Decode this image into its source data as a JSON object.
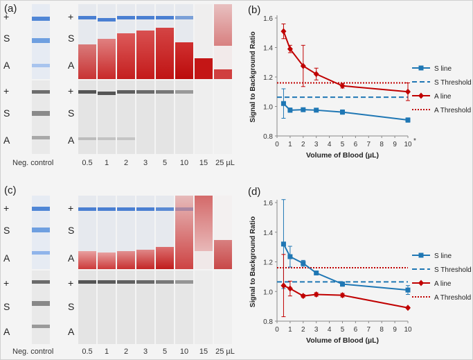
{
  "panels": {
    "a": "(a)",
    "b": "(b)",
    "c": "(c)",
    "d": "(d)"
  },
  "strip_row_labels": [
    "+",
    "S",
    "A"
  ],
  "strip_x_labels": [
    "0.5",
    "1",
    "2",
    "3",
    "5",
    "10",
    "15",
    "25 µL"
  ],
  "neg_control_label": "Neg. control",
  "chart_data": [
    {
      "type": "line",
      "panel": "(b)",
      "title": "",
      "xlabel": "Volume of Blood (µL)",
      "ylabel": "Signal to Background Ratio",
      "ylim": [
        0.8,
        1.6
      ],
      "xlim": [
        0,
        10
      ],
      "xticks": [
        "0",
        "1",
        "2",
        "3",
        "4",
        "5",
        "6",
        "7",
        "8",
        "9",
        "10"
      ],
      "yticks": [
        "0.8",
        "1.0",
        "1.2",
        "1.4",
        "1.6"
      ],
      "x_annotation": "*",
      "legend_position": "right",
      "series": [
        {
          "name": "S line",
          "color": "#1f77b4",
          "marker": "square",
          "x": [
            0.5,
            1,
            2,
            3,
            5,
            10
          ],
          "y": [
            1.02,
            0.975,
            0.978,
            0.975,
            0.962,
            0.908
          ],
          "err": [
            0.1,
            0.015,
            0.01,
            0.01,
            0.015,
            0.015
          ]
        },
        {
          "name": "A line",
          "color": "#c00000",
          "marker": "diamond",
          "x": [
            0.5,
            1,
            2,
            3,
            5,
            10
          ],
          "y": [
            1.51,
            1.39,
            1.275,
            1.22,
            1.14,
            1.1
          ],
          "err": [
            0.05,
            0.025,
            0.14,
            0.04,
            0.015,
            0.06
          ]
        }
      ],
      "thresholds": [
        {
          "name": "S Threshold",
          "color": "#1f77b4",
          "style": "dashed",
          "y": 1.063
        },
        {
          "name": "A Threshold",
          "color": "#c00000",
          "style": "dotted",
          "y": 1.16
        }
      ]
    },
    {
      "type": "line",
      "panel": "(d)",
      "title": "",
      "xlabel": "Volume of Blood (µL)",
      "ylabel": "Signal to Background Ratio",
      "ylim": [
        0.8,
        1.6
      ],
      "xlim": [
        0,
        10
      ],
      "xticks": [
        "0",
        "1",
        "2",
        "3",
        "4",
        "5",
        "6",
        "7",
        "8",
        "9",
        "10"
      ],
      "yticks": [
        "0.8",
        "1.0",
        "1.2",
        "1.4",
        "1.6"
      ],
      "legend_position": "right",
      "series": [
        {
          "name": "S line",
          "color": "#1f77b4",
          "marker": "square",
          "x": [
            0.5,
            1,
            2,
            3,
            5,
            10
          ],
          "y": [
            1.32,
            1.235,
            1.19,
            1.125,
            1.05,
            1.01
          ],
          "err": [
            0.3,
            0.07,
            0.02,
            0.01,
            0.015,
            0.03
          ]
        },
        {
          "name": "A line",
          "color": "#c00000",
          "marker": "diamond",
          "x": [
            0.5,
            1,
            2,
            3,
            5,
            10
          ],
          "y": [
            1.04,
            1.02,
            0.97,
            0.98,
            0.975,
            0.89
          ],
          "err": [
            0.21,
            0.05,
            0.01,
            0.012,
            0.012,
            0.005
          ]
        }
      ],
      "thresholds": [
        {
          "name": "S Threshold",
          "color": "#1f77b4",
          "style": "dashed",
          "y": 1.065
        },
        {
          "name": "A Threshold",
          "color": "#c00000",
          "style": "dotted",
          "y": 1.16
        }
      ]
    }
  ]
}
